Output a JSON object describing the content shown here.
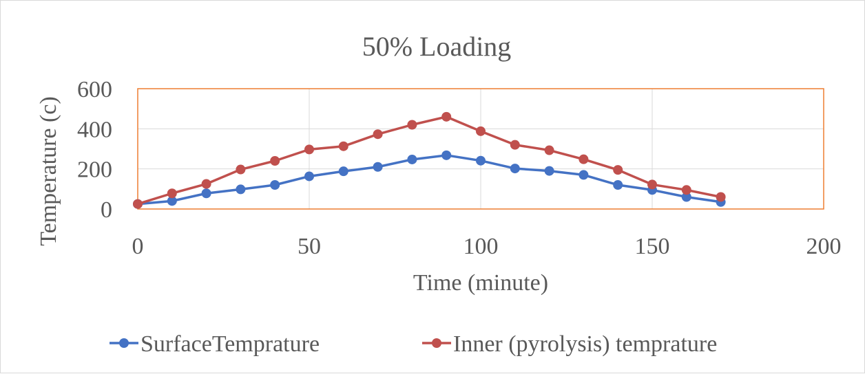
{
  "chart_data": {
    "type": "line",
    "title": "50% Loading",
    "xlabel": "Time (minute)",
    "ylabel": "Temperature (c)",
    "xlim": [
      0,
      200
    ],
    "ylim": [
      0,
      600
    ],
    "xticks": [
      0,
      50,
      100,
      150,
      200
    ],
    "yticks": [
      0,
      200,
      400,
      600
    ],
    "grid": true,
    "legend_position": "bottom",
    "x": [
      0,
      10,
      20,
      30,
      40,
      50,
      60,
      70,
      80,
      90,
      100,
      110,
      120,
      130,
      140,
      150,
      160,
      170
    ],
    "series": [
      {
        "name": "SurfaceTemprature",
        "color": "#4472c4",
        "values": [
          25,
          40,
          78,
          98,
          120,
          163,
          188,
          210,
          247,
          268,
          241,
          202,
          190,
          170,
          120,
          95,
          60,
          35
        ]
      },
      {
        "name": "Inner (pyrolysis) temprature",
        "color": "#c0504d",
        "values": [
          25,
          78,
          125,
          197,
          240,
          297,
          313,
          373,
          420,
          460,
          388,
          320,
          293,
          248,
          195,
          122,
          95,
          60
        ]
      }
    ],
    "plot_area_border_color": "#ed7d31",
    "gridline_color": "#d9d9d9"
  }
}
